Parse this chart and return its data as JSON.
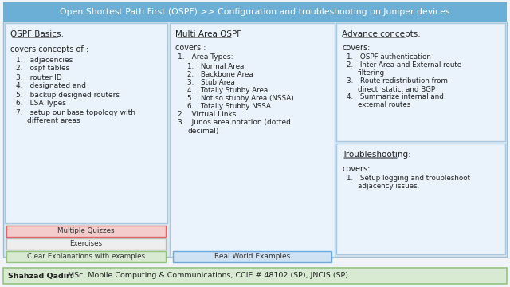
{
  "title": "Open Shortest Path First (OSPF) >> Configuration and troubleshooting on Juniper devices",
  "title_bg": "#6baed6",
  "title_color": "#ffffff",
  "footer_bold": "Shahzad Qadir:",
  "footer_normal": " MSc. Mobile Computing & Communications, CCIE # 48102 (SP), JNCIS (SP)",
  "footer_bg": "#d9ead3",
  "footer_border": "#93c47d",
  "col1_title": "OSPF Basics:",
  "col1_intro": "covers concepts of :",
  "col1_items": [
    "adjacencies",
    "ospf tables",
    "router ID",
    "designated and",
    "backup designed routers",
    "LSA Types",
    "setup our base topology with\ndifferent areas"
  ],
  "col1_buttons": [
    {
      "text": "Multiple Quizzes",
      "bg": "#f4cccc",
      "border": "#e06666"
    },
    {
      "text": "Exercises",
      "bg": "#eeeeee",
      "border": "#bbbbbb"
    },
    {
      "text": "Clear Explanations with examples",
      "bg": "#d9ead3",
      "border": "#93c47d"
    }
  ],
  "col2_title": "Multi Area OSPF",
  "col2_intro": "covers :",
  "col2_main_items": [
    {
      "label": "Area Types:",
      "subs": [
        "Normal Area",
        "Backbone Area",
        "Stub Area",
        "Totally Stubby Area",
        "Not so stubby Area (NSSA)",
        "Totally Stubby NSSA"
      ]
    },
    {
      "label": "Virtual Links",
      "subs": []
    },
    {
      "label": "Junos area notation (dotted\ndecimal)",
      "subs": []
    }
  ],
  "col2_button": {
    "text": "Real World Examples",
    "bg": "#cfe2f3",
    "border": "#6fa8dc"
  },
  "col3_top_title": "Advance concepts:",
  "col3_top_intro": "covers:",
  "col3_top_items": [
    "OSPF authentication",
    "Inter Area and External route\nfiltering",
    "Route redistribution from\ndirect, static, and BGP",
    "Summarize internal and\nexternal routes"
  ],
  "col3_bot_title": "Troubleshooting:",
  "col3_bot_intro": "covers:",
  "col3_bot_items": [
    "Setup logging and troubleshoot\nadjacency issues."
  ],
  "bg_color": "#f0f4f8",
  "panel_bg": "#eaf3fb",
  "panel_border": "#a8c8e0",
  "outer_bg": "#dce8f0",
  "outer_border": "#a0bcd0"
}
